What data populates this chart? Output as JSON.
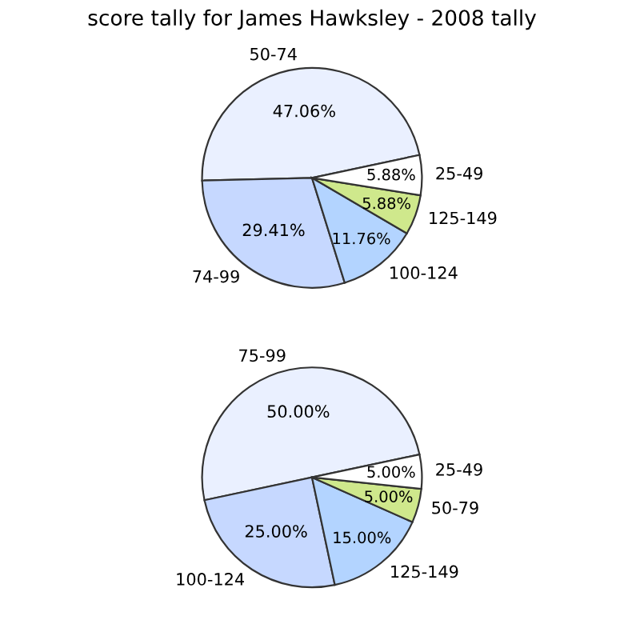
{
  "chart_data": [
    {
      "type": "pie",
      "title": "score tally for James Hawksley - 2008 tally",
      "categories": [
        "50-74",
        "74-99",
        "100-124",
        "125-149",
        "25-49"
      ],
      "values": [
        47.06,
        29.41,
        11.76,
        5.88,
        5.88
      ],
      "value_labels": [
        "47.06%",
        "29.41%",
        "11.76%",
        "5.88%",
        "5.88%"
      ],
      "colors": [
        "#eaf0ff",
        "#c6d8ff",
        "#b3d4ff",
        "#cfe88c",
        "#ffffff"
      ]
    },
    {
      "type": "pie",
      "categories": [
        "75-99",
        "100-124",
        "125-149",
        "50-79",
        "25-49"
      ],
      "values": [
        50.0,
        25.0,
        15.0,
        5.0,
        5.0
      ],
      "value_labels": [
        "50.00%",
        "25.00%",
        "15.00%",
        "5.00%",
        "5.00%"
      ],
      "colors": [
        "#eaf0ff",
        "#c6d8ff",
        "#b3d4ff",
        "#cfe88c",
        "#ffffff"
      ]
    }
  ]
}
